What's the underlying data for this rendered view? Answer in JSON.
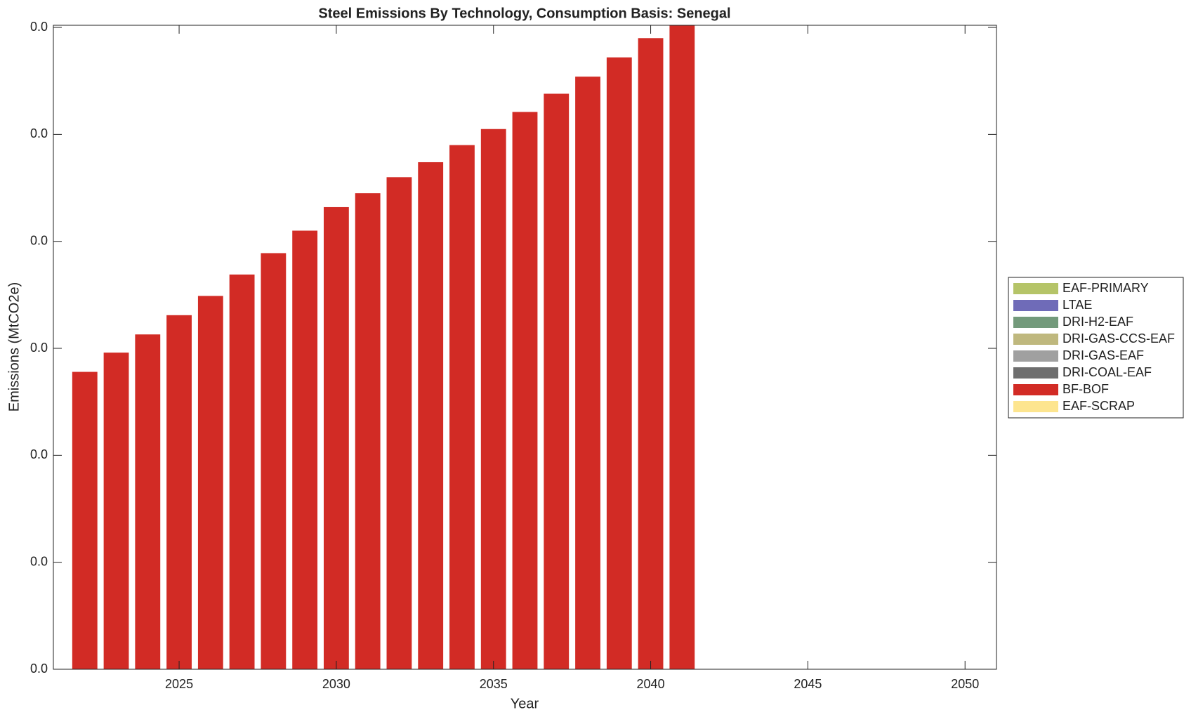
{
  "chart_data": {
    "type": "stacked_bar",
    "title": "Steel Emissions By Technology, Consumption Basis: Senegal",
    "x_label": "Year",
    "y_label": "Emissions (MtCO2e)",
    "x": [
      2022,
      2023,
      2024,
      2025,
      2026,
      2027,
      2028,
      2029,
      2030,
      2031,
      2032,
      2033,
      2034,
      2035,
      2036,
      2037,
      2038,
      2039,
      2040,
      2041
    ],
    "series": [
      {
        "name": "EAF-PRIMARY",
        "color": "#b5c468",
        "values": [
          0,
          0,
          0,
          0,
          0,
          0,
          0,
          0,
          0,
          0,
          0,
          0,
          0,
          0,
          0,
          0,
          0,
          0,
          0,
          0
        ]
      },
      {
        "name": "LTAE",
        "color": "#6f6bb8",
        "values": [
          0,
          0,
          0,
          0,
          0,
          0,
          0,
          0,
          0,
          0,
          0,
          0,
          0,
          0,
          0,
          0,
          0,
          0,
          0,
          0
        ]
      },
      {
        "name": "DRI-H2-EAF",
        "color": "#739a7b",
        "values": [
          0,
          0,
          0,
          0,
          0,
          0,
          0,
          0,
          0,
          0,
          0,
          0,
          0,
          0,
          0,
          0,
          0,
          0,
          0,
          0
        ]
      },
      {
        "name": "DRI-GAS-CCS-EAF",
        "color": "#bfb87e",
        "values": [
          0,
          0,
          0,
          0,
          0,
          0,
          0,
          0,
          0,
          0,
          0,
          0,
          0,
          0,
          0,
          0,
          0,
          0,
          0,
          0
        ]
      },
      {
        "name": "DRI-GAS-EAF",
        "color": "#a0a0a0",
        "values": [
          0,
          0,
          0,
          0,
          0,
          0,
          0,
          0,
          0,
          0,
          0,
          0,
          0,
          0,
          0,
          0,
          0,
          0,
          0,
          0
        ]
      },
      {
        "name": "DRI-COAL-EAF",
        "color": "#6e6e6e",
        "values": [
          0,
          0,
          0,
          0,
          0,
          0,
          0,
          0,
          0,
          0,
          0,
          0,
          0,
          0,
          0,
          0,
          0,
          0,
          0,
          0
        ]
      },
      {
        "name": "BF-BOF",
        "color": "#d22b25",
        "values": [
          0.0278,
          0.0296,
          0.0313,
          0.0331,
          0.0349,
          0.0369,
          0.0389,
          0.041,
          0.0432,
          0.0445,
          0.046,
          0.0474,
          0.049,
          0.0505,
          0.0521,
          0.0538,
          0.0554,
          0.0572,
          0.059,
          0.0602
        ]
      },
      {
        "name": "EAF-SCRAP",
        "color": "#fde58f",
        "values": [
          0,
          0,
          0,
          0,
          0,
          0,
          0,
          0,
          0,
          0,
          0,
          0,
          0,
          0,
          0,
          0,
          0,
          0,
          0,
          0
        ]
      }
    ],
    "xlim": [
      2021,
      2051
    ],
    "xticks": [
      2025,
      2030,
      2035,
      2040,
      2045,
      2050
    ],
    "ylim": [
      0,
      0.0602
    ],
    "yticks": [
      {
        "value": 0,
        "label": "0.0"
      },
      {
        "value": 0.01,
        "label": "0.0"
      },
      {
        "value": 0.02,
        "label": "0.0"
      },
      {
        "value": 0.03,
        "label": "0.0"
      },
      {
        "value": 0.04,
        "label": "0.0"
      },
      {
        "value": 0.05,
        "label": "0.0"
      },
      {
        "value": 0.06,
        "label": "0.0"
      }
    ],
    "legend": "outside-right"
  }
}
